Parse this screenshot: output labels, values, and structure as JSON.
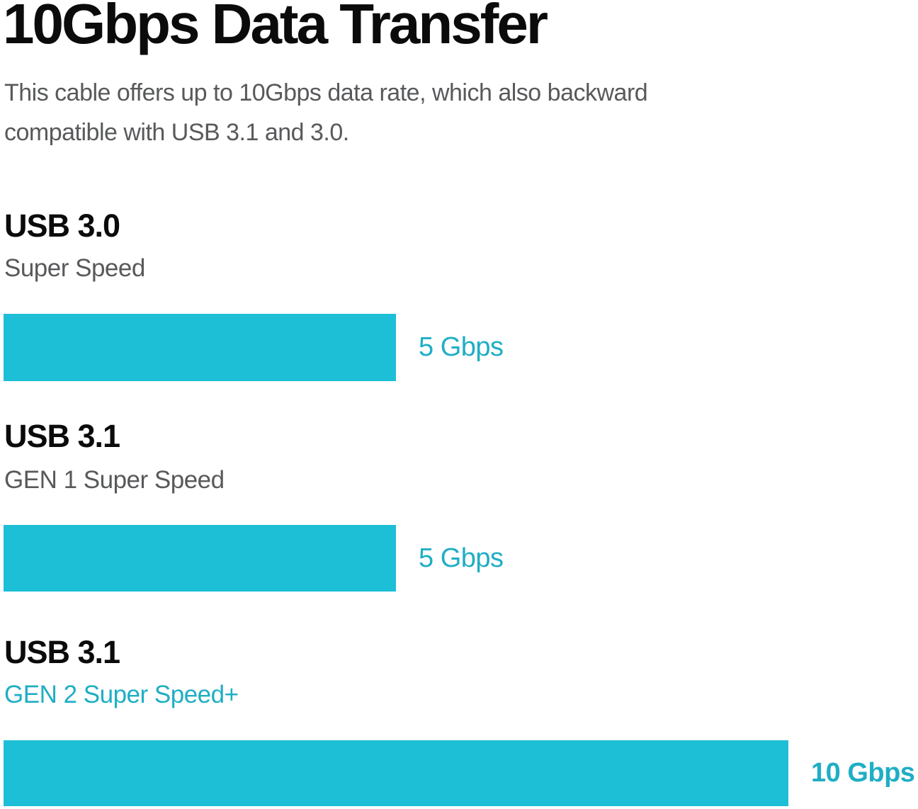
{
  "page": {
    "title": "10Gbps Data Transfer",
    "subtitle_lines": [
      "This cable offers up to 10Gbps data rate, which also backward",
      "compatible with USB 3.1 and 3.0."
    ]
  },
  "colors": {
    "bar": "#1CBFD6",
    "accent_text": "#1FAEC5",
    "heading": "#0B0B0C",
    "muted_text": "#58595B",
    "background": "#FFFFFF"
  },
  "chart_data": {
    "type": "bar",
    "orientation": "horizontal",
    "title": "10Gbps Data Transfer",
    "categories": [
      "USB 3.0 Super Speed",
      "USB 3.1 GEN 1 Super Speed",
      "USB 3.1 GEN 2 Super Speed+"
    ],
    "values": [
      5,
      5,
      10
    ],
    "unit": "Gbps",
    "value_labels": [
      "5 Gbps",
      "5 Gbps",
      "10 Gbps"
    ],
    "xlim": [
      0,
      10
    ],
    "grid": false,
    "legend": false,
    "bar_color": "#1CBFD6"
  },
  "sections": [
    {
      "heading": "USB 3.0",
      "subheading": "Super Speed",
      "value_label": "5 Gbps"
    },
    {
      "heading": "USB 3.1",
      "subheading": "GEN 1 Super Speed",
      "value_label": "5 Gbps"
    },
    {
      "heading": "USB 3.1",
      "subheading": "GEN 2 Super Speed+",
      "value_label": "10 Gbps"
    }
  ]
}
